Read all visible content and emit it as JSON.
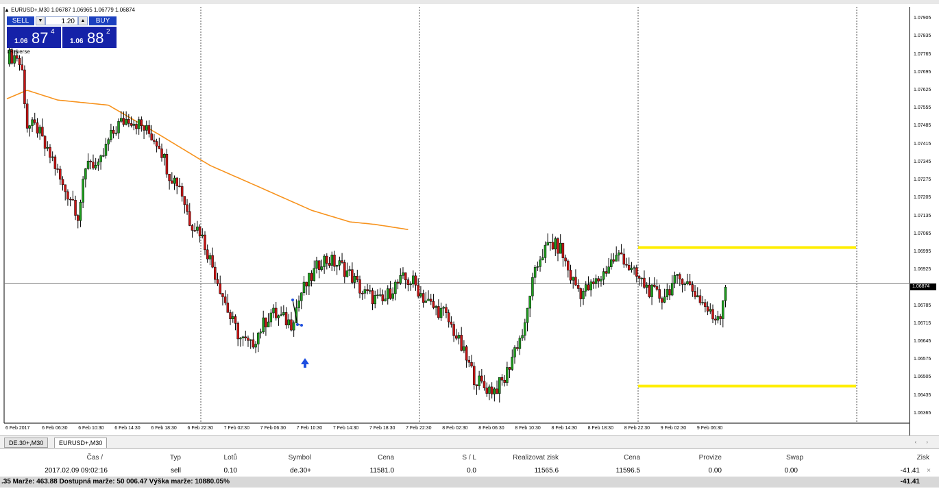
{
  "chart": {
    "symbol_info": "▲ EURUSD+,M30  1.06787 1.06965 1.06779 1.06874",
    "indicator_label": "xReverse",
    "current_price": "1.06874",
    "price_min": 1.0633,
    "price_max": 1.0794,
    "price_labels": [
      "1.07905",
      "1.07835",
      "1.07765",
      "1.07695",
      "1.07625",
      "1.07555",
      "1.07485",
      "1.07415",
      "1.07345",
      "1.07275",
      "1.07205",
      "1.07135",
      "1.07065",
      "1.06995",
      "1.06925",
      "1.06855",
      "1.06785",
      "1.06715",
      "1.06645",
      "1.06575",
      "1.06505",
      "1.06435",
      "1.06365"
    ],
    "time_labels": [
      "6 Feb 2017",
      "6 Feb 06:30",
      "6 Feb 10:30",
      "6 Feb 14:30",
      "6 Feb 18:30",
      "6 Feb 22:30",
      "7 Feb 02:30",
      "7 Feb 06:30",
      "7 Feb 10:30",
      "7 Feb 14:30",
      "7 Feb 18:30",
      "7 Feb 22:30",
      "8 Feb 02:30",
      "8 Feb 06:30",
      "8 Feb 10:30",
      "8 Feb 14:30",
      "8 Feb 18:30",
      "8 Feb 22:30",
      "9 Feb 02:30",
      "9 Feb 06:30"
    ],
    "colors": {
      "bull": "#1f9e1f",
      "bear": "#c81414",
      "ma": "#f7931e",
      "level": "#ffee00",
      "marker": "#1e4fe0"
    },
    "levels": [
      1.07015,
      1.06475
    ],
    "ma_anchors": [
      [
        0,
        1.07595
      ],
      [
        8,
        1.07628
      ],
      [
        20,
        1.0759
      ],
      [
        40,
        1.0757
      ],
      [
        60,
        1.07455
      ],
      [
        80,
        1.07335
      ],
      [
        100,
        1.07248
      ],
      [
        120,
        1.0716
      ],
      [
        135,
        1.07115
      ],
      [
        145,
        1.07105
      ],
      [
        158,
        1.07085
      ]
    ],
    "anchors": [
      [
        0,
        1.0776
      ],
      [
        4,
        1.0776
      ],
      [
        6,
        1.077
      ],
      [
        8,
        1.0749
      ],
      [
        12,
        1.0748
      ],
      [
        16,
        1.0738
      ],
      [
        18,
        1.0736
      ],
      [
        22,
        1.0725
      ],
      [
        26,
        1.072
      ],
      [
        28,
        1.0714
      ],
      [
        32,
        1.07365
      ],
      [
        36,
        1.0732
      ],
      [
        40,
        1.0743
      ],
      [
        44,
        1.07495
      ],
      [
        48,
        1.0752
      ],
      [
        52,
        1.07495
      ],
      [
        56,
        1.0746
      ],
      [
        60,
        1.0742
      ],
      [
        64,
        1.073
      ],
      [
        68,
        1.0726
      ],
      [
        72,
        1.0712
      ],
      [
        76,
        1.0708
      ],
      [
        80,
        1.0697
      ],
      [
        84,
        1.0686
      ],
      [
        88,
        1.0674
      ],
      [
        92,
        1.0666
      ],
      [
        96,
        1.0663
      ],
      [
        100,
        1.067
      ],
      [
        104,
        1.0676
      ],
      [
        108,
        1.0674
      ],
      [
        112,
        1.0672
      ],
      [
        116,
        1.0684
      ],
      [
        120,
        1.069
      ],
      [
        124,
        1.0697
      ],
      [
        128,
        1.0696
      ],
      [
        132,
        1.0694
      ],
      [
        136,
        1.069
      ],
      [
        140,
        1.0684
      ],
      [
        144,
        1.0682
      ],
      [
        148,
        1.068
      ],
      [
        152,
        1.0686
      ],
      [
        156,
        1.0689
      ],
      [
        160,
        1.0688
      ],
      [
        164,
        1.0682
      ],
      [
        168,
        1.0678
      ],
      [
        172,
        1.0676
      ],
      [
        176,
        1.0669
      ],
      [
        180,
        1.066
      ],
      [
        184,
        1.0651
      ],
      [
        188,
        1.0647
      ],
      [
        192,
        1.0646
      ],
      [
        196,
        1.065
      ],
      [
        200,
        1.0662
      ],
      [
        204,
        1.067
      ],
      [
        206,
        1.0684
      ],
      [
        210,
        1.0698
      ],
      [
        214,
        1.0703
      ],
      [
        218,
        1.0701
      ],
      [
        222,
        1.069
      ],
      [
        226,
        1.0684
      ],
      [
        230,
        1.0686
      ],
      [
        234,
        1.069
      ],
      [
        238,
        1.0696
      ],
      [
        242,
        1.0699
      ],
      [
        246,
        1.0692
      ],
      [
        250,
        1.0688
      ],
      [
        254,
        1.0684
      ],
      [
        258,
        1.0682
      ],
      [
        262,
        1.0687
      ],
      [
        266,
        1.069
      ],
      [
        270,
        1.0685
      ],
      [
        274,
        1.068
      ],
      [
        278,
        1.0674
      ],
      [
        281,
        1.0676
      ],
      [
        283,
        1.06874
      ]
    ]
  },
  "tradepanel": {
    "sell": "SELL",
    "buy": "BUY",
    "lot": "1.20",
    "bid_small": "1.06",
    "bid_big": "87",
    "bid_sup": "4",
    "ask_small": "1.06",
    "ask_big": "88",
    "ask_sup": "2"
  },
  "tabs": [
    {
      "label": "DE.30+,M30"
    },
    {
      "label": "EURUSD+,M30"
    }
  ],
  "terminal": {
    "headers": {
      "time": "Čas  /",
      "type": "Typ",
      "lots": "Lotů",
      "symbol": "Symbol",
      "price": "Cena",
      "sl": "S / L",
      "tp": "Realizovat zisk",
      "price2": "Cena",
      "commission": "Provize",
      "swap": "Swap",
      "profit": "Zisk"
    },
    "row": {
      "time": "2017.02.09 09:02:16",
      "type": "sell",
      "lots": "0.10",
      "symbol": "de.30+",
      "price": "11581.0",
      "sl": "0.0",
      "tp": "11565.6",
      "price2": "11596.5",
      "commission": "0.00",
      "swap": "0.00",
      "profit": "-41.41",
      "close": "×"
    },
    "summary": {
      "text": ".35  Marže: 463.88  Dostupná marže: 50 006.47  Výška marže: 10880.05%",
      "profit": "-41.41"
    }
  }
}
